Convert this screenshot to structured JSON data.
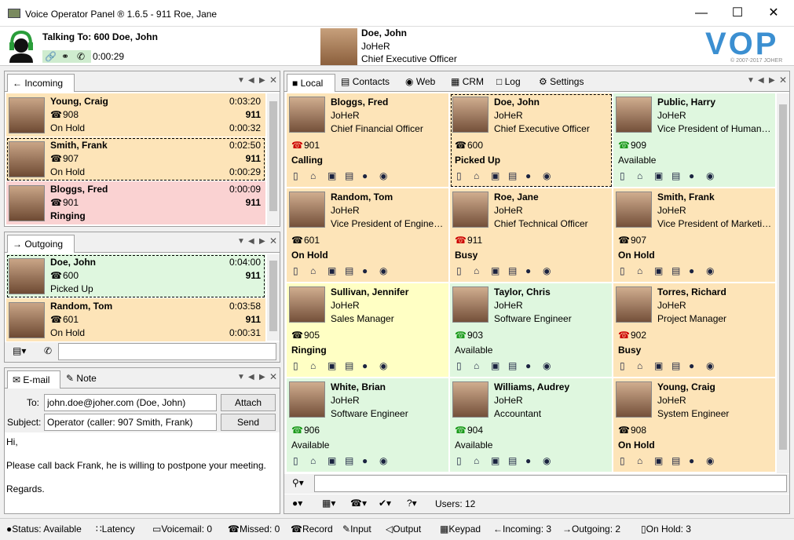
{
  "title": "Voice Operator Panel ® 1.6.5 - 911 Roe, Jane",
  "header": {
    "talking": "Talking To: 600 Doe, John",
    "duration": "0:00:29",
    "caller_name": "Doe, John",
    "caller_company": "JoHeR",
    "caller_title": "Chief Executive Officer",
    "logo": "VOP",
    "copyright": "© 2007-2017 JOHER"
  },
  "incoming": {
    "tab": "Incoming",
    "items": [
      {
        "name": "Young, Craig",
        "ext": "908",
        "state": "On Hold",
        "t1": "0:03:20",
        "t2": "911",
        "t3": "0:00:32"
      },
      {
        "name": "Smith, Frank",
        "ext": "907",
        "state": "On Hold",
        "t1": "0:02:50",
        "t2": "911",
        "t3": "0:00:29"
      },
      {
        "name": "Bloggs, Fred",
        "ext": "901",
        "state": "Ringing",
        "t1": "0:00:09",
        "t2": "911",
        "t3": ""
      }
    ]
  },
  "outgoing": {
    "tab": "Outgoing",
    "items": [
      {
        "name": "Doe, John",
        "ext": "600",
        "state": "Picked Up",
        "t1": "0:04:00",
        "t2": "911",
        "t3": ""
      },
      {
        "name": "Random, Tom",
        "ext": "601",
        "state": "On Hold",
        "t1": "0:03:58",
        "t2": "911",
        "t3": "0:00:31"
      }
    ]
  },
  "email": {
    "tab_email": "E-mail",
    "tab_note": "Note",
    "to_label": "To:",
    "to": "john.doe@joher.com (Doe, John)",
    "subject_label": "Subject:",
    "subject": "Operator (caller: 907 Smith, Frank)",
    "attach": "Attach",
    "send": "Send",
    "body1": "Hi,",
    "body2": "Please call back Frank, he is willing to postpone your meeting.",
    "body3": "Regards."
  },
  "tabs": {
    "local": "Local",
    "contacts": "Contacts",
    "web": "Web",
    "crm": "CRM",
    "log": "Log",
    "settings": "Settings"
  },
  "contacts": [
    {
      "name": "Bloggs, Fred",
      "company": "JoHeR",
      "title": "Chief Financial Officer",
      "ext": "901",
      "status": "Calling",
      "color": "hold"
    },
    {
      "name": "Doe, John",
      "company": "JoHeR",
      "title": "Chief Executive Officer",
      "ext": "600",
      "status": "Picked Up",
      "color": "hold"
    },
    {
      "name": "Public, Harry",
      "company": "JoHeR",
      "title": "Vice President of Human…",
      "ext": "909",
      "status": "Available",
      "color": "green"
    },
    {
      "name": "Random, Tom",
      "company": "JoHeR",
      "title": "Vice President of Engine…",
      "ext": "601",
      "status": "On Hold",
      "color": "hold"
    },
    {
      "name": "Roe, Jane",
      "company": "JoHeR",
      "title": "Chief Technical Officer",
      "ext": "911",
      "status": "Busy",
      "color": "hold"
    },
    {
      "name": "Smith, Frank",
      "company": "JoHeR",
      "title": "Vice President of Marketi…",
      "ext": "907",
      "status": "On Hold",
      "color": "hold"
    },
    {
      "name": "Sullivan, Jennifer",
      "company": "JoHeR",
      "title": "Sales Manager",
      "ext": "905",
      "status": "Ringing",
      "color": "yellow"
    },
    {
      "name": "Taylor, Chris",
      "company": "JoHeR",
      "title": "Software Engineer",
      "ext": "903",
      "status": "Available",
      "color": "green"
    },
    {
      "name": "Torres, Richard",
      "company": "JoHeR",
      "title": "Project Manager",
      "ext": "902",
      "status": "Busy",
      "color": "hold"
    },
    {
      "name": "White, Brian",
      "company": "JoHeR",
      "title": "Software Engineer",
      "ext": "906",
      "status": "Available",
      "color": "green"
    },
    {
      "name": "Williams, Audrey",
      "company": "JoHeR",
      "title": "Accountant",
      "ext": "904",
      "status": "Available",
      "color": "green"
    },
    {
      "name": "Young, Craig",
      "company": "JoHeR",
      "title": "System Engineer",
      "ext": "908",
      "status": "On Hold",
      "color": "hold"
    }
  ],
  "users": "Users: 12",
  "statusbar": [
    "Status: Available",
    "Latency",
    "Voicemail: 0",
    "Missed: 0",
    "Record",
    "Input",
    "Output",
    "Keypad",
    "Incoming: 3",
    "Outgoing: 2",
    "On Hold: 3"
  ]
}
